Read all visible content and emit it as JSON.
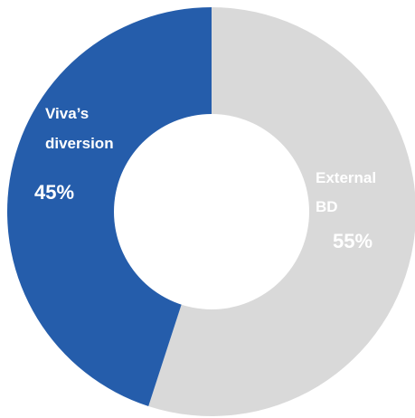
{
  "chart_data": {
    "type": "pie",
    "variant": "donut",
    "title": "",
    "start": "12 o'clock",
    "direction": "clockwise",
    "slices": [
      {
        "label_lines": [
          "External",
          "BD"
        ],
        "value": 55,
        "value_label": "55%",
        "color": "#d9d9d9"
      },
      {
        "label_lines": [
          "Viva’s",
          "diversion"
        ],
        "value": 45,
        "value_label": "45%",
        "color": "#255dab"
      }
    ],
    "legend": "none"
  }
}
